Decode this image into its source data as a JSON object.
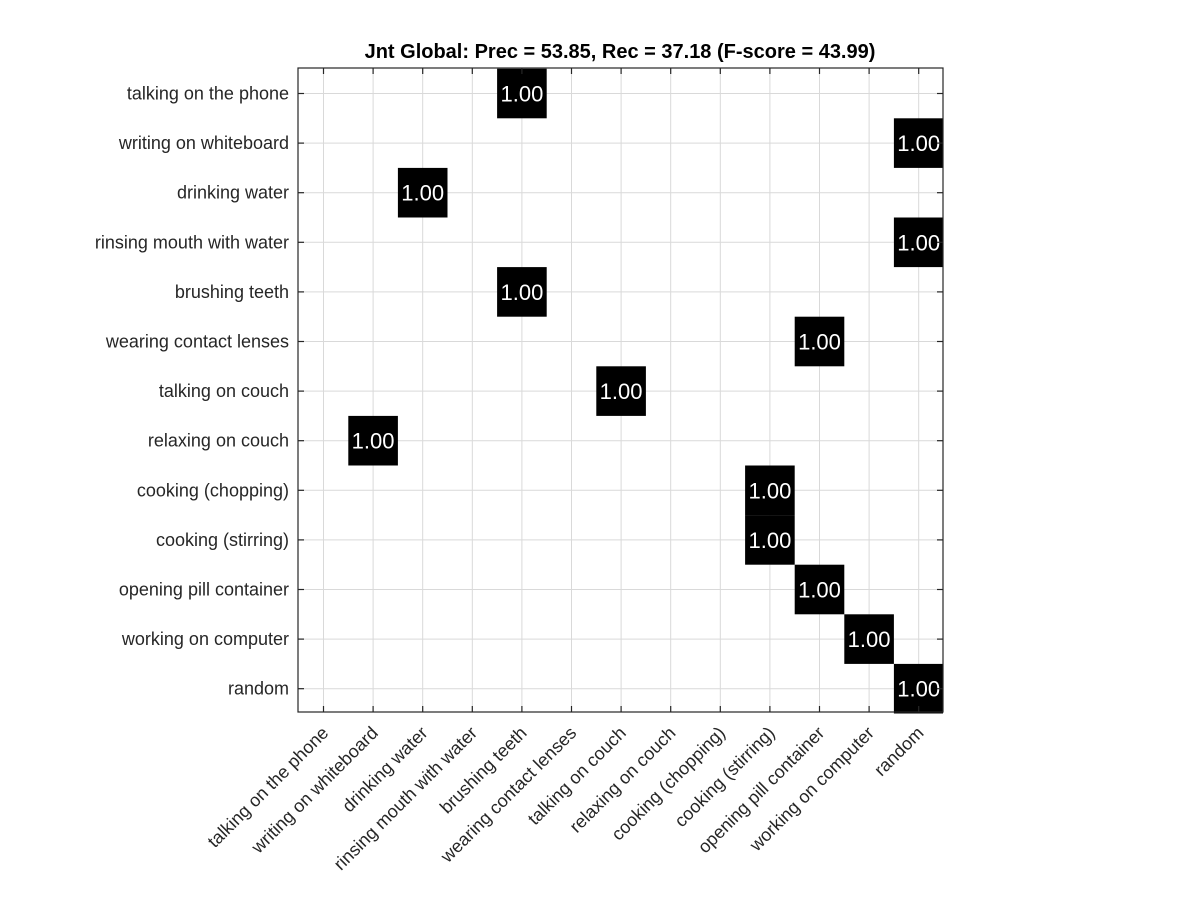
{
  "chart_data": {
    "type": "heatmap",
    "title": "Jnt Global: Prec = 53.85, Rec = 37.18 (F-score = 43.99)",
    "y_categories": [
      "talking on the phone",
      "writing on whiteboard",
      "drinking water",
      "rinsing mouth with water",
      "brushing teeth",
      "wearing contact lenses",
      "talking on couch",
      "relaxing on couch",
      "cooking (chopping)",
      "cooking (stirring)",
      "opening pill container",
      "working on computer",
      "random"
    ],
    "x_categories": [
      "talking on the phone",
      "writing on whiteboard",
      "drinking water",
      "rinsing mouth with water",
      "brushing teeth",
      "wearing contact lenses",
      "talking on couch",
      "relaxing on couch",
      "cooking (chopping)",
      "cooking (stirring)",
      "opening pill container",
      "working on computer",
      "random"
    ],
    "cells": [
      {
        "row": 0,
        "col": 4,
        "value": 1.0,
        "label": "1.00"
      },
      {
        "row": 1,
        "col": 12,
        "value": 1.0,
        "label": "1.00"
      },
      {
        "row": 2,
        "col": 2,
        "value": 1.0,
        "label": "1.00"
      },
      {
        "row": 3,
        "col": 12,
        "value": 1.0,
        "label": "1.00"
      },
      {
        "row": 4,
        "col": 4,
        "value": 1.0,
        "label": "1.00"
      },
      {
        "row": 5,
        "col": 10,
        "value": 1.0,
        "label": "1.00"
      },
      {
        "row": 6,
        "col": 6,
        "value": 1.0,
        "label": "1.00"
      },
      {
        "row": 7,
        "col": 1,
        "value": 1.0,
        "label": "1.00"
      },
      {
        "row": 8,
        "col": 9,
        "value": 1.0,
        "label": "1.00"
      },
      {
        "row": 9,
        "col": 9,
        "value": 1.0,
        "label": "1.00"
      },
      {
        "row": 10,
        "col": 10,
        "value": 1.0,
        "label": "1.00"
      },
      {
        "row": 11,
        "col": 11,
        "value": 1.0,
        "label": "1.00"
      },
      {
        "row": 12,
        "col": 12,
        "value": 1.0,
        "label": "1.00"
      }
    ],
    "grid": true,
    "colors": {
      "cell_fill": "#000000",
      "cell_text": "#ffffff",
      "background": "#ffffff",
      "grid": "#d9d9d9",
      "axes": "#262626"
    }
  }
}
